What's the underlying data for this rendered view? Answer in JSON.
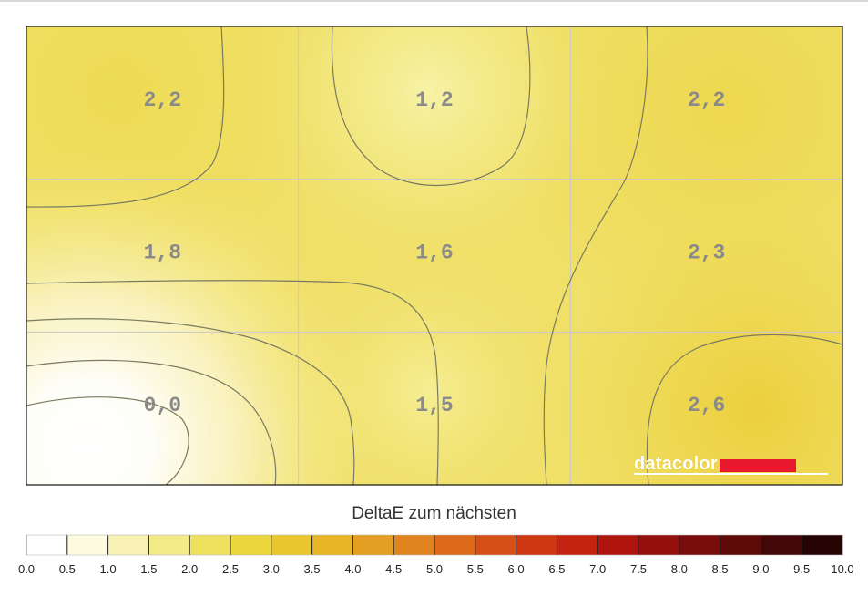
{
  "chart_data": {
    "type": "heatmap",
    "title": "",
    "grid": true,
    "rows": 3,
    "cols": 3,
    "values": [
      [
        2.2,
        1.2,
        2.2
      ],
      [
        1.8,
        1.6,
        2.3
      ],
      [
        0.0,
        1.5,
        2.6
      ]
    ],
    "value_labels": [
      [
        "2,2",
        "1,2",
        "2,2"
      ],
      [
        "1,8",
        "1,6",
        "2,3"
      ],
      [
        "0,0",
        "1,5",
        "2,6"
      ]
    ],
    "colorbar": {
      "title": "DeltaE zum nächsten",
      "range": [
        0,
        10
      ],
      "step": 0.5,
      "tick_labels": [
        "0.0",
        "0.5",
        "1.0",
        "1.5",
        "2.0",
        "2.5",
        "3.0",
        "3.5",
        "4.0",
        "4.5",
        "5.0",
        "5.5",
        "6.0",
        "6.5",
        "7.0",
        "7.5",
        "8.0",
        "8.5",
        "9.0",
        "9.5",
        "10.0"
      ],
      "colors": [
        "#ffffff",
        "#fdfbe0",
        "#f8f3b4",
        "#f3eb8a",
        "#efe15e",
        "#ecd63d",
        "#e9c82e",
        "#e6b627",
        "#e39f22",
        "#e0851d",
        "#dc6a19",
        "#d64f16",
        "#cf3713",
        "#c42311",
        "#b0140f",
        "#95100d",
        "#790d0b",
        "#5d0a09",
        "#420707",
        "#270404"
      ]
    }
  },
  "logo": {
    "text": "datacolor",
    "bar_color": "#e8192c"
  },
  "colors": {
    "grid": "#c8c8c8",
    "contour": "#7a7a60",
    "frame": "#111111"
  }
}
